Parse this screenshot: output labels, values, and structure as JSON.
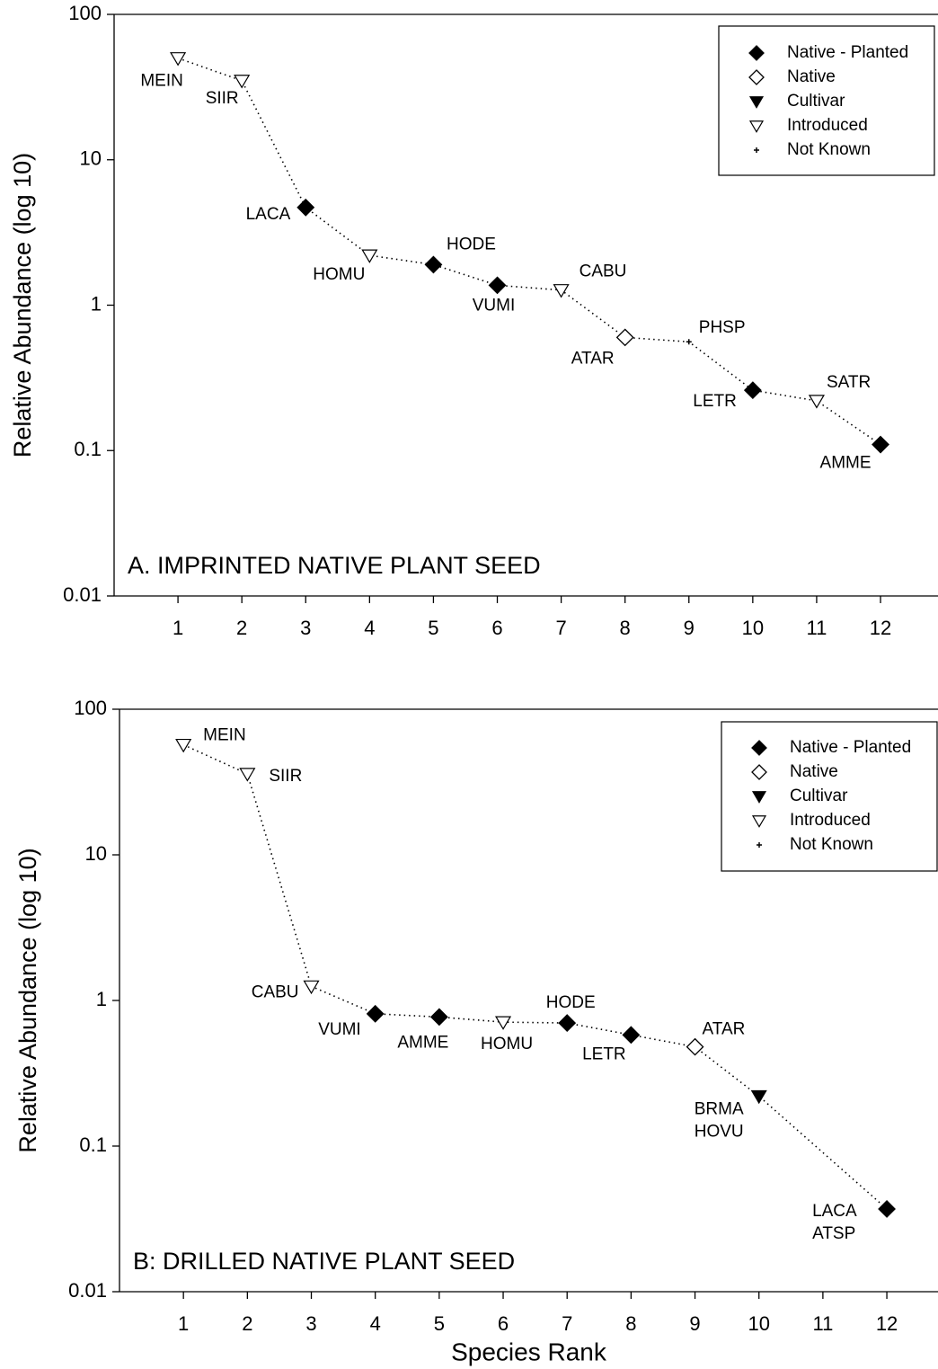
{
  "chart_data": [
    {
      "type": "line",
      "title": "A. IMPRINTED NATIVE PLANT SEED",
      "y_label": "Relative Abundance (log 10)",
      "log_y": true,
      "ylim": [
        0.01,
        100
      ],
      "yticks": [
        0.01,
        0.1,
        1,
        10,
        100
      ],
      "xlim": [
        0,
        12.9
      ],
      "xticks": [
        1,
        2,
        3,
        4,
        5,
        6,
        7,
        8,
        9,
        10,
        11,
        12
      ],
      "x": [
        1,
        2,
        3,
        4,
        5,
        6,
        7,
        8,
        9,
        10,
        11,
        12
      ],
      "values": [
        50,
        35,
        4.7,
        2.2,
        1.9,
        1.37,
        1.27,
        0.6,
        0.56,
        0.26,
        0.22,
        0.11
      ],
      "labels": [
        "MEIN",
        "SIIR",
        "LACA",
        "HOMU",
        "HODE",
        "VUMI",
        "CABU",
        "ATAR",
        "PHSP",
        "LETR",
        "SATR",
        "AMME"
      ],
      "groups": [
        "Introduced",
        "Introduced",
        "Native - Planted",
        "Introduced",
        "Native - Planted",
        "Native - Planted",
        "Introduced",
        "Native",
        "Not Known",
        "Native - Planted",
        "Introduced",
        "Native - Planted"
      ],
      "legend": [
        {
          "name": "Native - Planted",
          "marker": "diamond",
          "filled": true
        },
        {
          "name": "Native",
          "marker": "diamond",
          "filled": false
        },
        {
          "name": "Cultivar",
          "marker": "triangle-down",
          "filled": true
        },
        {
          "name": "Introduced",
          "marker": "triangle-down",
          "filled": false
        },
        {
          "name": "Not Known",
          "marker": "plus",
          "filled": true
        }
      ],
      "legend_position": "upper right",
      "line_style": "dotted",
      "color": "#000000"
    },
    {
      "type": "line",
      "title": "B: DRILLED NATIVE PLANT SEED",
      "y_label": "Relative Abundance (log 10)",
      "x_label": "Species Rank",
      "log_y": true,
      "ylim": [
        0.01,
        100
      ],
      "yticks": [
        0.01,
        0.1,
        1,
        10,
        100
      ],
      "xlim": [
        0,
        12.8
      ],
      "xticks": [
        1,
        2,
        3,
        4,
        5,
        6,
        7,
        8,
        9,
        10,
        11,
        12
      ],
      "x": [
        1,
        2,
        3,
        4,
        5,
        6,
        7,
        8,
        9,
        10,
        12
      ],
      "values": [
        57,
        36,
        1.25,
        0.81,
        0.77,
        0.71,
        0.7,
        0.58,
        0.48,
        0.22,
        0.037
      ],
      "labels": [
        "MEIN",
        "SIIR",
        "CABU",
        "VUMI",
        "AMME",
        "HOMU",
        "HODE",
        "LETR",
        "ATAR",
        [
          "BRMA",
          "HOVU"
        ],
        [
          "LACA",
          "ATSP"
        ]
      ],
      "groups": [
        "Introduced",
        "Introduced",
        "Introduced",
        "Native - Planted",
        "Native - Planted",
        "Introduced",
        "Native - Planted",
        "Native - Planted",
        "Native",
        "Cultivar",
        "Native - Planted"
      ],
      "legend": [
        {
          "name": "Native - Planted",
          "marker": "diamond",
          "filled": true
        },
        {
          "name": "Native",
          "marker": "diamond",
          "filled": false
        },
        {
          "name": "Cultivar",
          "marker": "triangle-down",
          "filled": true
        },
        {
          "name": "Introduced",
          "marker": "triangle-down",
          "filled": false
        },
        {
          "name": "Not Known",
          "marker": "plus",
          "filled": true
        }
      ],
      "legend_position": "upper right",
      "line_style": "dotted",
      "color": "#000000"
    }
  ]
}
